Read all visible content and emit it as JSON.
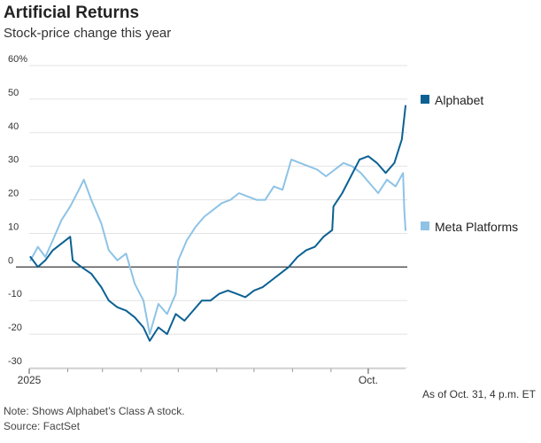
{
  "header": {
    "title": "Artificial Returns",
    "subtitle": "Stock-price change this year"
  },
  "footer": {
    "as_of": "As of Oct. 31, 4 p.m. ET",
    "note": "Note: Shows Alphabet’s Class A stock.",
    "source": "Source: FactSet"
  },
  "colors": {
    "alphabet": "#0b6193",
    "meta": "#8ec3e6",
    "zero_line": "#222222",
    "grid": "#e3e3e3"
  },
  "chart_data": {
    "type": "line",
    "y_tick_labels": [
      "60%",
      "50",
      "40",
      "30",
      "20",
      "10",
      "0",
      "-10",
      "-20",
      "-30"
    ],
    "y_tick_values": [
      60,
      50,
      40,
      30,
      20,
      10,
      0,
      -10,
      -20,
      -30
    ],
    "x_tick_labels": [
      "2025",
      "Oct."
    ],
    "x_tick_values": [
      "2025-01-01",
      "2025-10-01"
    ],
    "x_range": [
      "2025-01-01",
      "2025-10-31"
    ],
    "ylim": [
      -30,
      60
    ],
    "grid": true,
    "legend": "right, at line ends",
    "series": [
      {
        "name": "Alphabet",
        "x": [
          "2025-01-02",
          "2025-01-08",
          "2025-01-14",
          "2025-01-20",
          "2025-01-27",
          "2025-02-03",
          "2025-02-05",
          "2025-02-12",
          "2025-02-20",
          "2025-02-28",
          "2025-03-06",
          "2025-03-13",
          "2025-03-20",
          "2025-03-27",
          "2025-04-03",
          "2025-04-08",
          "2025-04-15",
          "2025-04-22",
          "2025-04-29",
          "2025-05-06",
          "2025-05-13",
          "2025-05-20",
          "2025-05-27",
          "2025-06-03",
          "2025-06-10",
          "2025-06-17",
          "2025-06-24",
          "2025-07-01",
          "2025-07-08",
          "2025-07-15",
          "2025-07-22",
          "2025-07-29",
          "2025-08-05",
          "2025-08-12",
          "2025-08-19",
          "2025-08-26",
          "2025-09-02",
          "2025-09-03",
          "2025-09-10",
          "2025-09-17",
          "2025-09-24",
          "2025-10-01",
          "2025-10-08",
          "2025-10-15",
          "2025-10-22",
          "2025-10-28",
          "2025-10-31"
        ],
        "values": [
          3,
          0,
          2,
          5,
          7,
          9,
          2,
          0,
          -2,
          -6,
          -10,
          -12,
          -13,
          -15,
          -18,
          -22,
          -18,
          -20,
          -14,
          -16,
          -13,
          -10,
          -10,
          -8,
          -7,
          -8,
          -9,
          -7,
          -6,
          -4,
          -2,
          0,
          3,
          5,
          6,
          9,
          11,
          18,
          22,
          27,
          32,
          33,
          31,
          28,
          31,
          38,
          48
        ]
      },
      {
        "name": "Meta Platforms",
        "x": [
          "2025-01-02",
          "2025-01-08",
          "2025-01-14",
          "2025-01-20",
          "2025-01-27",
          "2025-02-03",
          "2025-02-10",
          "2025-02-14",
          "2025-02-20",
          "2025-02-28",
          "2025-03-06",
          "2025-03-13",
          "2025-03-20",
          "2025-03-27",
          "2025-04-03",
          "2025-04-08",
          "2025-04-15",
          "2025-04-22",
          "2025-04-29",
          "2025-05-01",
          "2025-05-08",
          "2025-05-15",
          "2025-05-22",
          "2025-05-29",
          "2025-06-05",
          "2025-06-12",
          "2025-06-19",
          "2025-06-26",
          "2025-07-03",
          "2025-07-10",
          "2025-07-17",
          "2025-07-24",
          "2025-07-31",
          "2025-08-07",
          "2025-08-14",
          "2025-08-21",
          "2025-08-28",
          "2025-09-04",
          "2025-09-11",
          "2025-09-18",
          "2025-09-25",
          "2025-10-02",
          "2025-10-09",
          "2025-10-16",
          "2025-10-23",
          "2025-10-29",
          "2025-10-30",
          "2025-10-31"
        ],
        "values": [
          2,
          6,
          3,
          8,
          14,
          18,
          23,
          26,
          20,
          13,
          5,
          2,
          4,
          -5,
          -10,
          -20,
          -11,
          -14,
          -8,
          2,
          8,
          12,
          15,
          17,
          19,
          20,
          22,
          21,
          20,
          20,
          24,
          23,
          32,
          31,
          30,
          29,
          27,
          29,
          31,
          30,
          28,
          25,
          22,
          26,
          24,
          28,
          17,
          11
        ]
      }
    ]
  }
}
